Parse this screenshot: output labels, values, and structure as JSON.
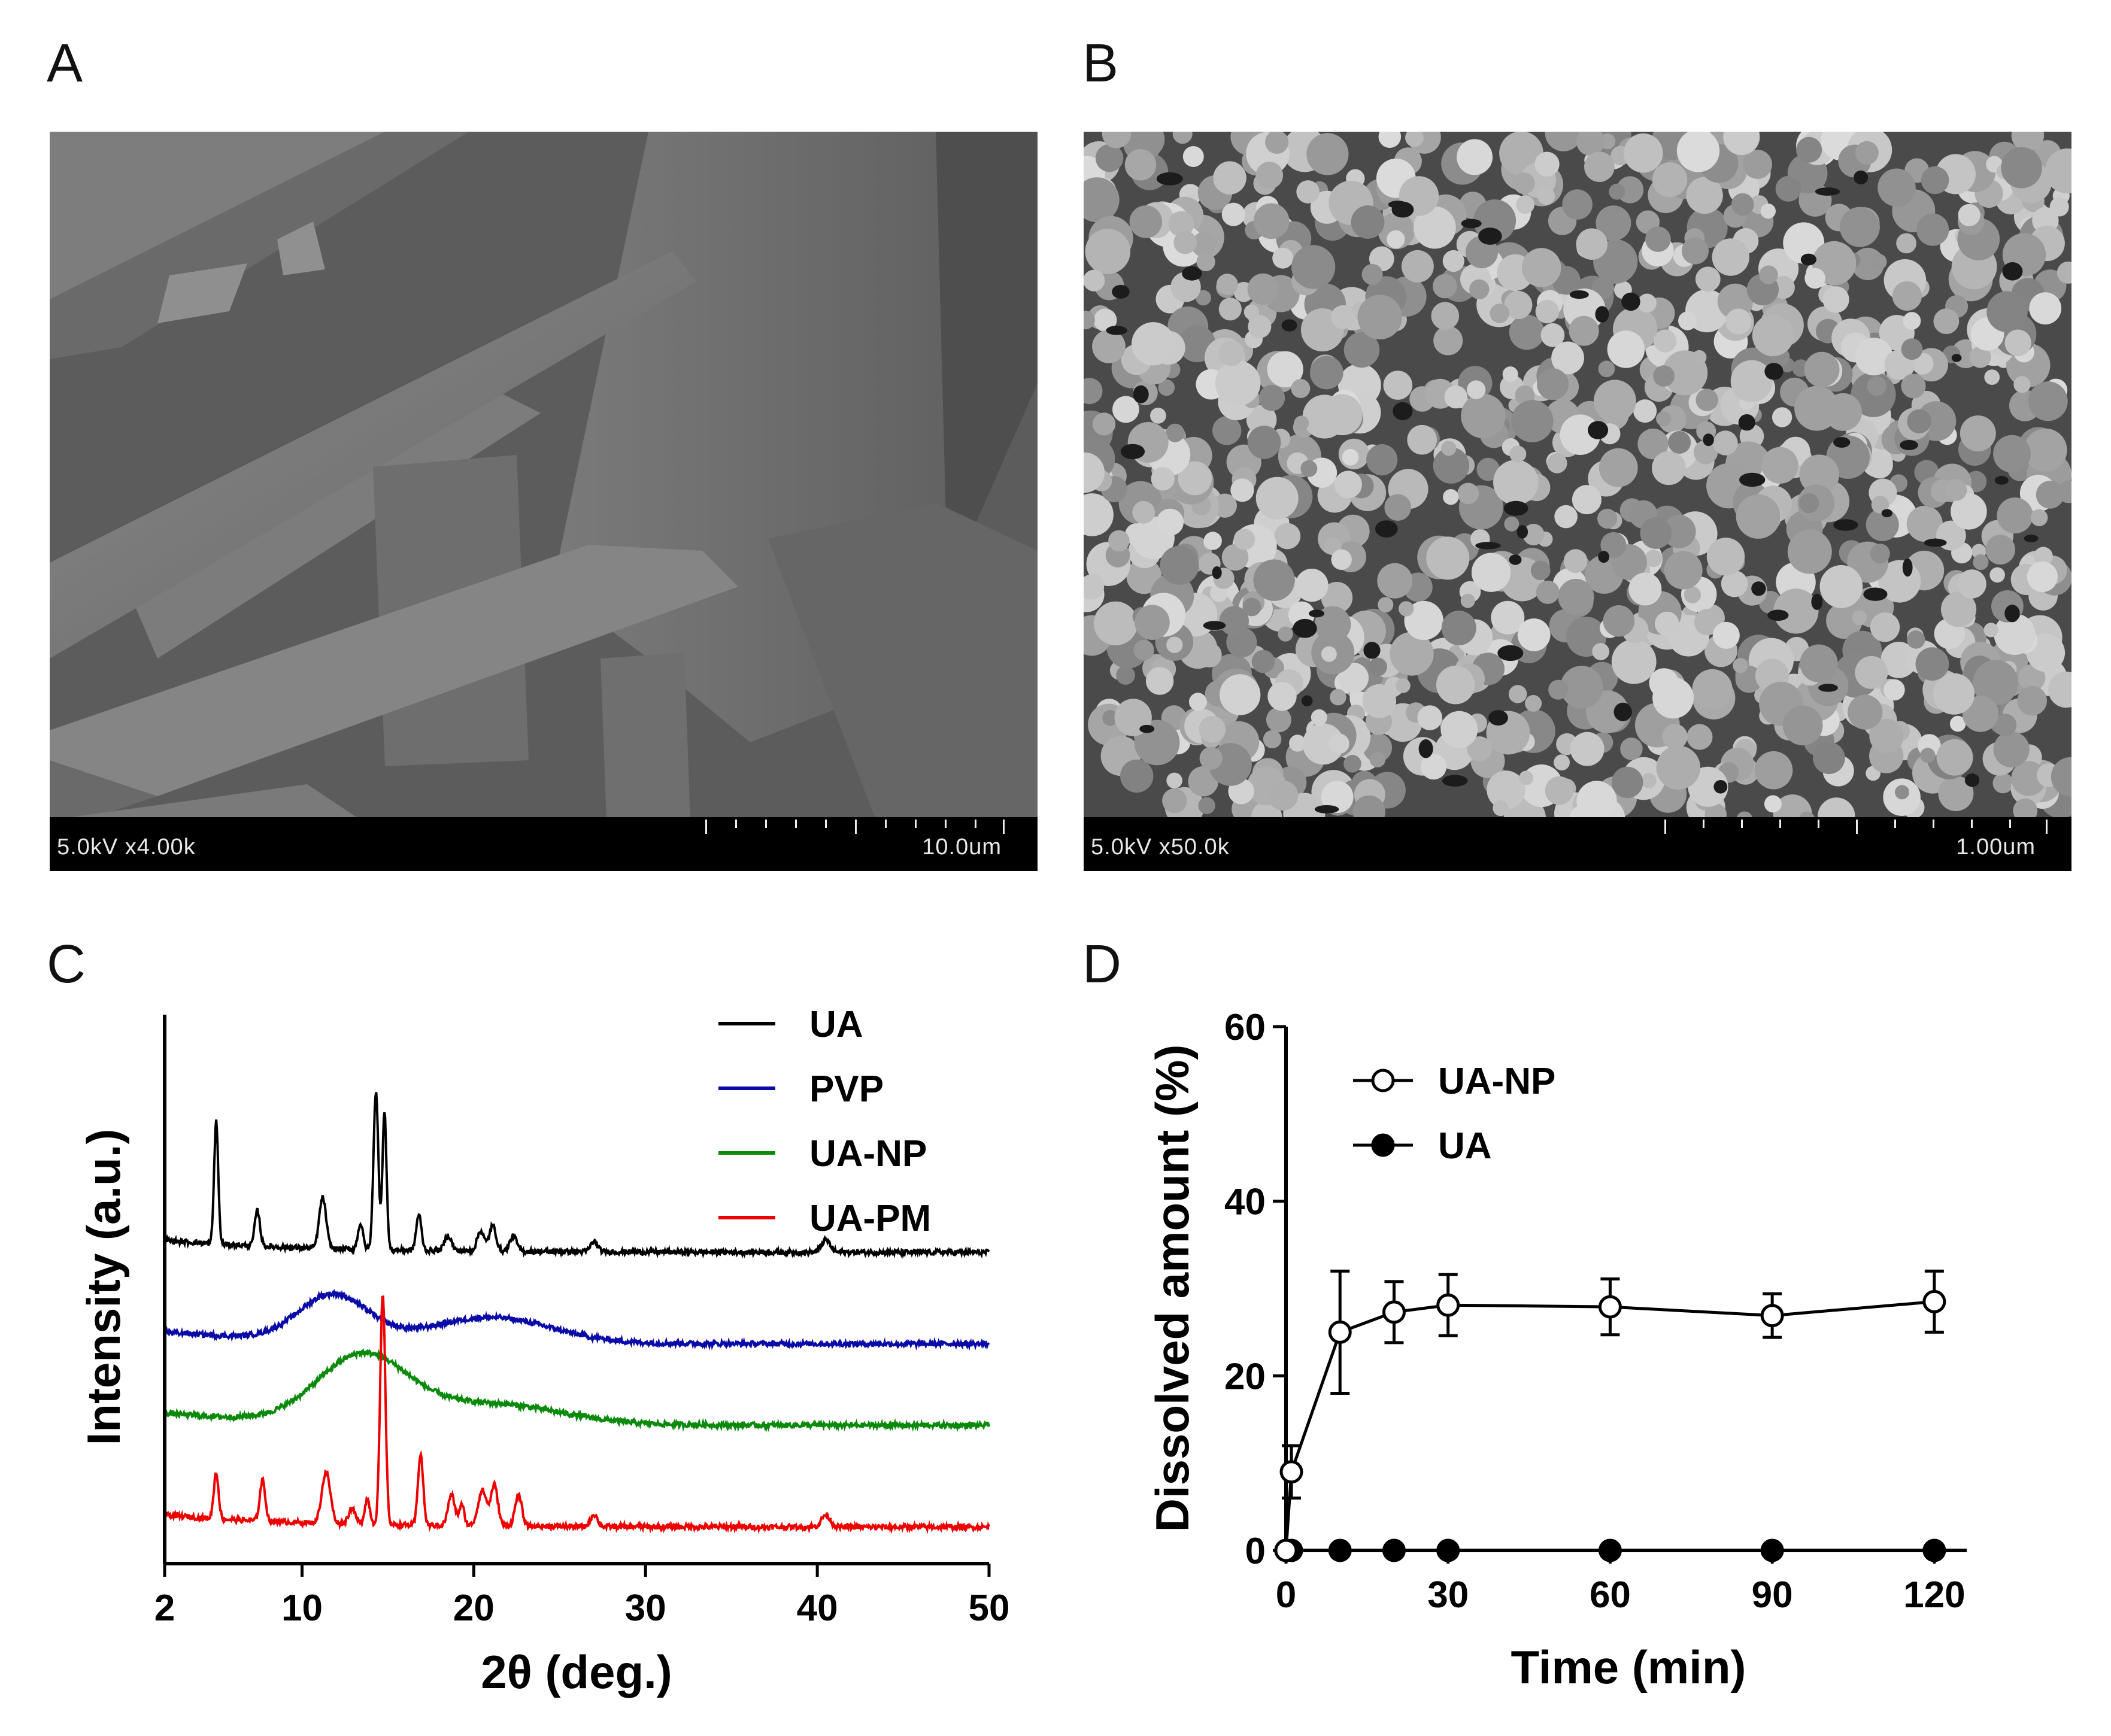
{
  "panels": {
    "a": {
      "letter": "A",
      "sem_label": "5.0kV x4.00k",
      "scale_label": "10.0um"
    },
    "b": {
      "letter": "B",
      "sem_label": "5.0kV x50.0k",
      "scale_label": "1.00um"
    },
    "c": {
      "letter": "C"
    },
    "d": {
      "letter": "D"
    }
  },
  "chart_data": [
    {
      "type": "line",
      "panel": "C",
      "xlabel": "2θ (deg.)",
      "ylabel": "Intensity (a.u.)",
      "xlim": [
        2,
        50
      ],
      "xticks": [
        2,
        10,
        20,
        30,
        40,
        50
      ],
      "yticks": [],
      "legend_position": "top-right",
      "series": [
        {
          "name": "UA",
          "color": "#000000",
          "offset": 3.0,
          "peaks": [
            [
              5.0,
              1.2,
              0.12
            ],
            [
              7.4,
              0.35,
              0.15
            ],
            [
              11.2,
              0.5,
              0.2
            ],
            [
              13.4,
              0.25,
              0.15
            ],
            [
              14.3,
              1.55,
              0.14
            ],
            [
              14.8,
              1.35,
              0.12
            ],
            [
              16.8,
              0.35,
              0.15
            ],
            [
              18.5,
              0.15,
              0.2
            ],
            [
              20.4,
              0.2,
              0.2
            ],
            [
              21.1,
              0.25,
              0.2
            ],
            [
              22.3,
              0.15,
              0.2
            ],
            [
              27.0,
              0.1,
              0.2
            ],
            [
              40.5,
              0.12,
              0.25
            ]
          ]
        },
        {
          "name": "PVP",
          "color": "#0a0aa8",
          "offset": 2.1,
          "peaks": [
            [
              11.8,
              0.45,
              2.0
            ],
            [
              21.0,
              0.25,
              3.5
            ]
          ]
        },
        {
          "name": "UA-NP",
          "color": "#0a8a0a",
          "offset": 1.3,
          "peaks": [
            [
              13.5,
              0.65,
              2.6
            ],
            [
              21.0,
              0.2,
              4.0
            ]
          ]
        },
        {
          "name": "UA-PM",
          "color": "#ee0000",
          "offset": 0.3,
          "peaks": [
            [
              5.0,
              0.45,
              0.14
            ],
            [
              7.7,
              0.4,
              0.16
            ],
            [
              11.4,
              0.5,
              0.25
            ],
            [
              12.9,
              0.15,
              0.2
            ],
            [
              13.8,
              0.25,
              0.15
            ],
            [
              14.7,
              2.25,
              0.15
            ],
            [
              16.9,
              0.7,
              0.15
            ],
            [
              18.7,
              0.3,
              0.2
            ],
            [
              19.3,
              0.2,
              0.15
            ],
            [
              20.5,
              0.35,
              0.25
            ],
            [
              21.2,
              0.4,
              0.2
            ],
            [
              22.6,
              0.3,
              0.2
            ],
            [
              27.0,
              0.12,
              0.2
            ],
            [
              40.5,
              0.12,
              0.25
            ]
          ]
        }
      ]
    },
    {
      "type": "line",
      "panel": "D",
      "xlabel": "Time (min)",
      "ylabel": "Dissolved amount (%)",
      "xlim": [
        0,
        126
      ],
      "ylim": [
        0,
        60
      ],
      "xticks": [
        0,
        30,
        60,
        90,
        120
      ],
      "yticks": [
        0,
        20,
        40,
        60
      ],
      "legend_position": "top-left",
      "series": [
        {
          "name": "UA-NP",
          "marker": "open-circle",
          "x": [
            0,
            1,
            10,
            20,
            30,
            60,
            90,
            120
          ],
          "y": [
            0,
            9,
            25,
            27.3,
            28.1,
            27.9,
            26.9,
            28.5
          ],
          "err": [
            0,
            3,
            7,
            3.5,
            3.5,
            3.2,
            2.5,
            3.5
          ]
        },
        {
          "name": "UA",
          "marker": "filled-circle",
          "x": [
            0,
            1,
            10,
            20,
            30,
            60,
            90,
            120
          ],
          "y": [
            0,
            0,
            0,
            0,
            0,
            0,
            0,
            0
          ],
          "err": [
            0,
            0,
            0,
            0,
            0,
            0,
            0,
            0
          ]
        }
      ]
    }
  ]
}
